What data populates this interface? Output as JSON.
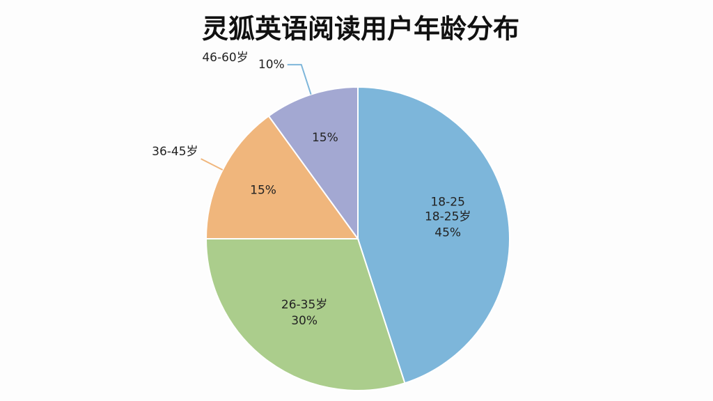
{
  "chart_data": {
    "type": "pie",
    "title": "灵狐英语阅读用户年龄分布",
    "categories": [
      "18-25岁",
      "26-35岁",
      "36-45岁",
      "46-60岁"
    ],
    "values": [
      45,
      30,
      15,
      10
    ],
    "value_labels": [
      "45%",
      "30%",
      "15%",
      "10%"
    ],
    "colors": [
      "#7db6da",
      "#abcd8c",
      "#f0b67c",
      "#a3a8d2"
    ],
    "annotations": [
      "18-25",
      "15%"
    ]
  }
}
